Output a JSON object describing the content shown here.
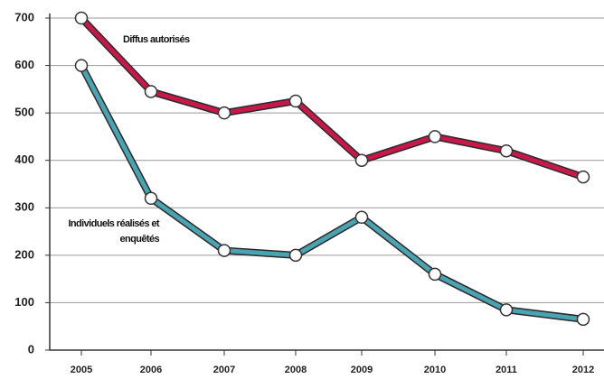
{
  "chart_data": {
    "type": "line",
    "categories": [
      "2005",
      "2006",
      "2007",
      "2008",
      "2009",
      "2010",
      "2011",
      "2012"
    ],
    "series": [
      {
        "name": "Diffus autorisés",
        "color": "#c8184a",
        "values": [
          700,
          545,
          500,
          525,
          400,
          450,
          420,
          365
        ]
      },
      {
        "name": "Individuels réalisés et enquêtés",
        "color": "#4aa3b0",
        "values": [
          600,
          320,
          210,
          200,
          280,
          160,
          85,
          65
        ]
      }
    ],
    "ylim": [
      0,
      700
    ],
    "yticks": [
      0,
      100,
      200,
      300,
      400,
      500,
      600,
      700
    ],
    "grid": true
  }
}
